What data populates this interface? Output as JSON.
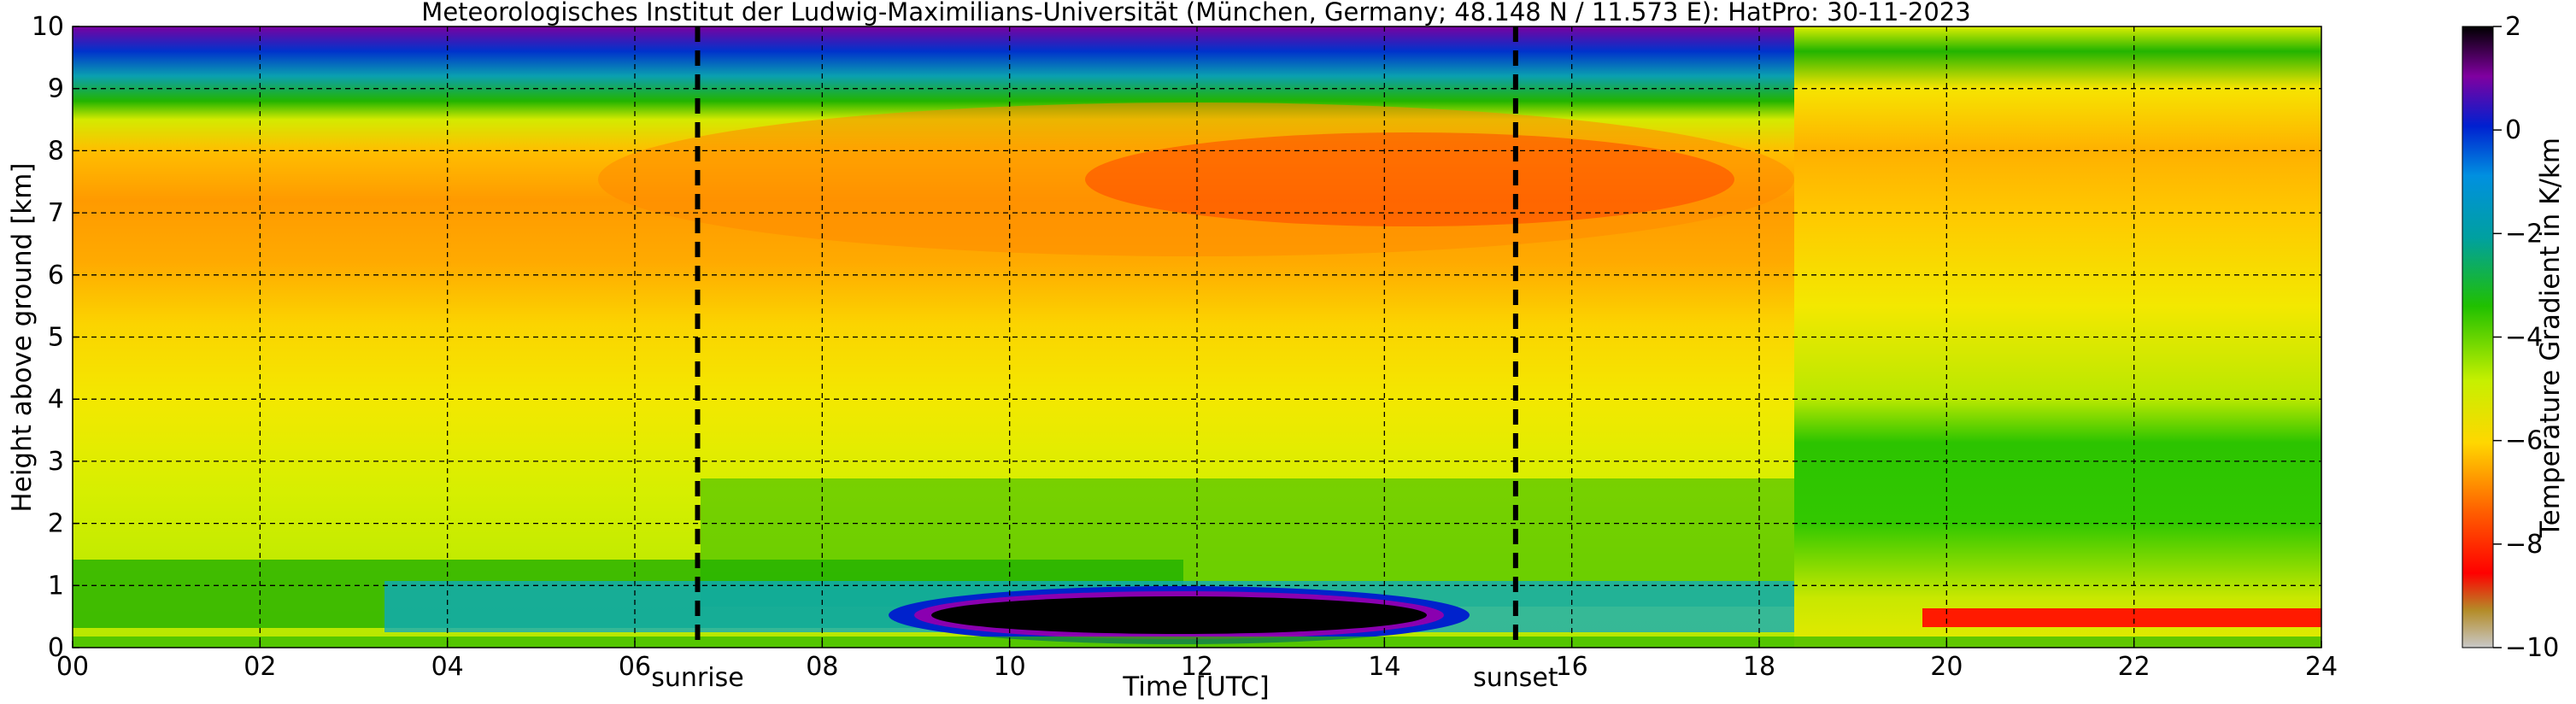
{
  "chart_data": {
    "type": "heatmap",
    "title": "Meteorologisches Institut der Ludwig-Maximilians-Universität (München, Germany; 48.148 N / 11.573 E):    HatPro: 30-11-2023",
    "xlabel": "Time [UTC]",
    "ylabel": "Height above ground [km]",
    "x_unit": "hours UTC",
    "xlim": [
      0,
      24
    ],
    "ylim": [
      0,
      10
    ],
    "x_ticks": [
      "00",
      "02",
      "04",
      "06",
      "08",
      "10",
      "12",
      "14",
      "16",
      "18",
      "20",
      "22",
      "24"
    ],
    "y_ticks": [
      "0",
      "1",
      "2",
      "3",
      "4",
      "5",
      "6",
      "7",
      "8",
      "9",
      "10"
    ],
    "grid": true,
    "annotations": [
      {
        "label": "sunrise",
        "x": 6.67
      },
      {
        "label": "sunset",
        "x": 15.4
      }
    ],
    "colorbar": {
      "label": "Temperature Gradient in K/km",
      "range": [
        -10,
        2
      ],
      "ticks": [
        "2",
        "0",
        "−2",
        "−4",
        "−6",
        "−8",
        "−10"
      ]
    },
    "approx_field": [
      {
        "height_km": [
          9.5,
          10
        ],
        "time_h": [
          0,
          3
        ],
        "gradient_K_per_km": 1.5
      },
      {
        "height_km": [
          9,
          9.5
        ],
        "time_h": [
          0,
          3
        ],
        "gradient_K_per_km": -1
      },
      {
        "height_km": [
          6,
          8
        ],
        "time_h": [
          9,
          18.3
        ],
        "gradient_K_per_km": -7.5
      },
      {
        "height_km": [
          2,
          3.5
        ],
        "time_h": [
          18.3,
          24
        ],
        "gradient_K_per_km": -4.5
      },
      {
        "height_km": [
          0.2,
          0.7
        ],
        "time_h": [
          9.5,
          14
        ],
        "gradient_K_per_km": 1.8
      },
      {
        "height_km": [
          0.3,
          0.6
        ],
        "time_h": [
          20,
          24
        ],
        "gradient_K_per_km": -8.5
      }
    ]
  }
}
